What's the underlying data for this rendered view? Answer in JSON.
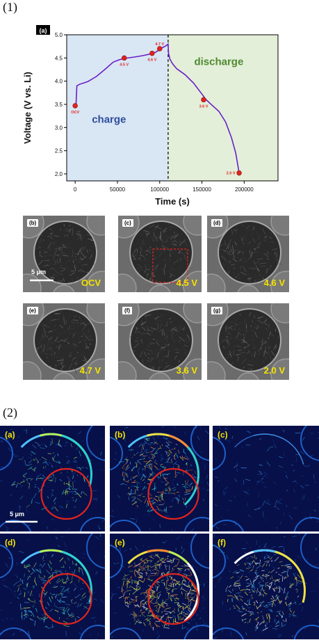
{
  "section1": {
    "label": "(1)"
  },
  "section2": {
    "label": "(2)"
  },
  "chart_data": {
    "type": "line",
    "panel_label": "(a)",
    "xlabel": "Time (s)",
    "ylabel": "Voltage (V vs. Li)",
    "xlim": [
      -10000,
      240000
    ],
    "ylim": [
      1.85,
      5.0
    ],
    "xticks": [
      0,
      50000,
      100000,
      150000,
      200000
    ],
    "yticks": [
      2.0,
      2.5,
      3.0,
      3.5,
      4.0,
      4.5,
      5.0
    ],
    "ytick_labels": [
      "2.0",
      "2.5",
      "3.0",
      "3.5",
      "4.0",
      "4.5",
      "5.0"
    ],
    "regions": [
      {
        "label": "charge",
        "from": -10000,
        "to": 110000,
        "color": "#d9e6f4",
        "text_color": "#2e4d9c"
      },
      {
        "label": "discharge",
        "from": 110000,
        "to": 240000,
        "color": "#e3efd9",
        "text_color": "#4f8a30"
      }
    ],
    "divider_x": 110000,
    "series": [
      {
        "color": "#6a1fc7",
        "x": [
          0,
          1000,
          2000,
          5000,
          15000,
          25000,
          35000,
          45000,
          52000,
          58000,
          70000,
          80000,
          90000,
          95000,
          98000,
          101000,
          104000,
          106000,
          108000,
          110000,
          110500,
          112000,
          115000,
          120000,
          130000,
          140000,
          150000,
          155000,
          162000,
          170000,
          178000,
          185000,
          190000,
          194000
        ],
        "y": [
          3.47,
          3.5,
          3.9,
          3.93,
          3.99,
          4.1,
          4.25,
          4.41,
          4.46,
          4.49,
          4.52,
          4.55,
          4.59,
          4.62,
          4.66,
          4.7,
          4.73,
          4.75,
          4.77,
          4.8,
          4.6,
          4.48,
          4.38,
          4.27,
          4.14,
          3.96,
          3.72,
          3.6,
          3.48,
          3.35,
          3.12,
          2.78,
          2.45,
          2.02
        ]
      }
    ],
    "markers": [
      {
        "x": 0,
        "y": 3.47,
        "label": "OCV"
      },
      {
        "x": 58000,
        "y": 4.5,
        "label": "4.5 V"
      },
      {
        "x": 91000,
        "y": 4.6,
        "label": "4.6 V"
      },
      {
        "x": 100000,
        "y": 4.7,
        "label": "4.7 V"
      },
      {
        "x": 152000,
        "y": 3.6,
        "label": "3.6 V"
      },
      {
        "x": 194000,
        "y": 2.02,
        "label": "2.0 V"
      }
    ]
  },
  "sem_panels": [
    {
      "tag": "(b)",
      "voltage": "OCV",
      "scale": "5 μm"
    },
    {
      "tag": "(c)",
      "voltage": "4.5 V"
    },
    {
      "tag": "(d)",
      "voltage": "4.6 V"
    },
    {
      "tag": "(e)",
      "voltage": "4.7 V"
    },
    {
      "tag": "(f)",
      "voltage": "3.6 V"
    },
    {
      "tag": "(g)",
      "voltage": "2.0 V"
    }
  ],
  "map_panels": [
    {
      "tag": "(a)",
      "scale": "5 μm"
    },
    {
      "tag": "(b)"
    },
    {
      "tag": "(c)"
    },
    {
      "tag": "(d)"
    },
    {
      "tag": "(e)"
    },
    {
      "tag": "(f)"
    }
  ],
  "colors": {
    "curve": "#6a1fc7",
    "marker": "#e0241e",
    "voltage_text": "#f4e300",
    "circle": "#e0241e"
  }
}
